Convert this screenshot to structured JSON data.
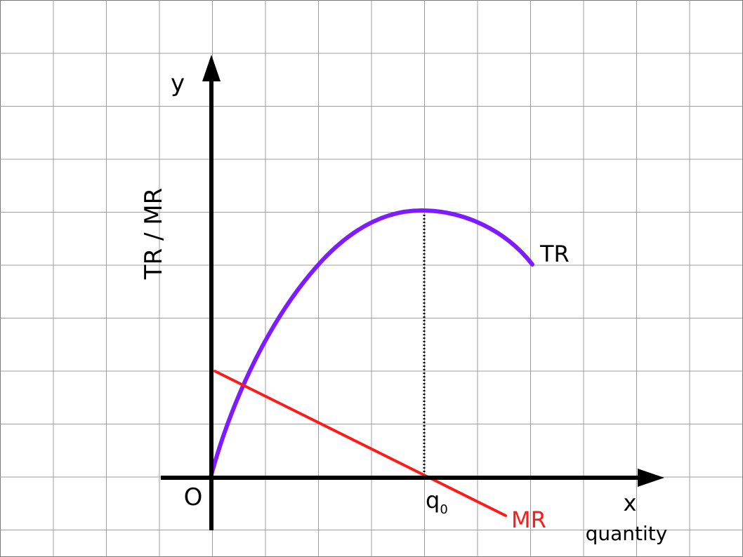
{
  "diagram": {
    "axis_y_label": "y",
    "axis_x_label": "x",
    "y_title": "TR / MR",
    "x_title": "quantity",
    "origin_label": "O",
    "q_label": "q",
    "q_subscript": "0",
    "curves": {
      "tr": {
        "label": "TR",
        "color": "#7f1cff"
      },
      "mr": {
        "label": "MR",
        "color": "#ff1a1a"
      }
    },
    "peak_marker": "dotted vertical line from TR maximum to the x-axis at q0"
  },
  "colors": {
    "grid": "#9e9e9e",
    "axes": "#000000",
    "frame": "#7a7a7a",
    "background": "#ffffff"
  }
}
